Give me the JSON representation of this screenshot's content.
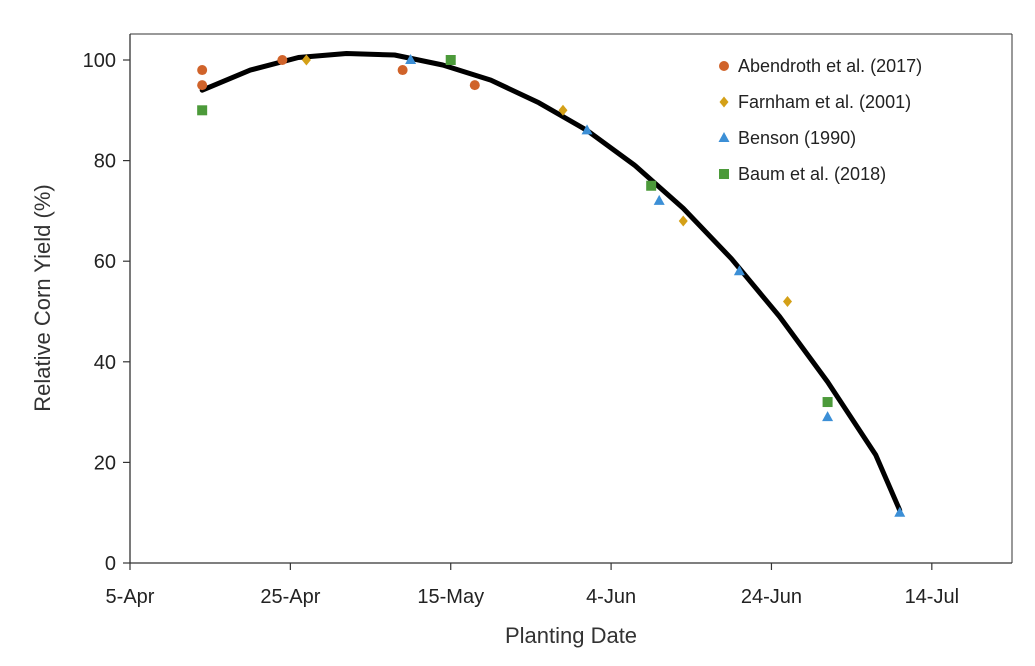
{
  "chart_data": {
    "type": "scatter",
    "xlabel": "Planting Date",
    "ylabel": "Relative Corn Yield (%)",
    "xlim": [
      "5-Apr",
      "24-Jul"
    ],
    "ylim": [
      0,
      100
    ],
    "x_ticks": [
      "5-Apr",
      "25-Apr",
      "15-May",
      "4-Jun",
      "24-Jun",
      "14-Jul"
    ],
    "y_ticks": [
      0,
      20,
      40,
      60,
      80,
      100
    ],
    "grid": false,
    "legend_position": "top-right",
    "series": [
      {
        "name": "Abendroth et al. (2017)",
        "marker": "circle",
        "color": "#d0632a",
        "points": [
          {
            "x": "14-Apr",
            "y": 98
          },
          {
            "x": "14-Apr",
            "y": 95
          },
          {
            "x": "24-Apr",
            "y": 100
          },
          {
            "x": "9-May",
            "y": 98
          },
          {
            "x": "18-May",
            "y": 95
          }
        ]
      },
      {
        "name": "Farnham et al. (2001)",
        "marker": "diamond",
        "color": "#d4a017",
        "points": [
          {
            "x": "27-Apr",
            "y": 100
          },
          {
            "x": "29-May",
            "y": 90
          },
          {
            "x": "13-Jun",
            "y": 68
          },
          {
            "x": "26-Jun",
            "y": 52
          }
        ]
      },
      {
        "name": "Benson (1990)",
        "marker": "triangle",
        "color": "#3c8fd6",
        "points": [
          {
            "x": "10-May",
            "y": 100
          },
          {
            "x": "1-Jun",
            "y": 86
          },
          {
            "x": "10-Jun",
            "y": 72
          },
          {
            "x": "20-Jun",
            "y": 58
          },
          {
            "x": "1-Jul",
            "y": 29
          },
          {
            "x": "10-Jul",
            "y": 10
          }
        ]
      },
      {
        "name": "Baum et al. (2018)",
        "marker": "square",
        "color": "#4c9a3a",
        "points": [
          {
            "x": "14-Apr",
            "y": 90
          },
          {
            "x": "15-May",
            "y": 100
          },
          {
            "x": "9-Jun",
            "y": 75
          },
          {
            "x": "1-Jul",
            "y": 32
          }
        ]
      }
    ],
    "trendline": {
      "type": "quadratic",
      "color": "#000000",
      "points": [
        {
          "x": "14-Apr",
          "y": 94
        },
        {
          "x": "20-Apr",
          "y": 98
        },
        {
          "x": "26-Apr",
          "y": 100.5
        },
        {
          "x": "2-May",
          "y": 101.3
        },
        {
          "x": "8-May",
          "y": 101
        },
        {
          "x": "14-May",
          "y": 99
        },
        {
          "x": "20-May",
          "y": 96
        },
        {
          "x": "26-May",
          "y": 91.5
        },
        {
          "x": "1-Jun",
          "y": 86
        },
        {
          "x": "7-Jun",
          "y": 79
        },
        {
          "x": "13-Jun",
          "y": 70.5
        },
        {
          "x": "19-Jun",
          "y": 60.5
        },
        {
          "x": "25-Jun",
          "y": 49
        },
        {
          "x": "1-Jul",
          "y": 36
        },
        {
          "x": "7-Jul",
          "y": 21.5
        },
        {
          "x": "10-Jul",
          "y": 10.5
        }
      ]
    }
  }
}
